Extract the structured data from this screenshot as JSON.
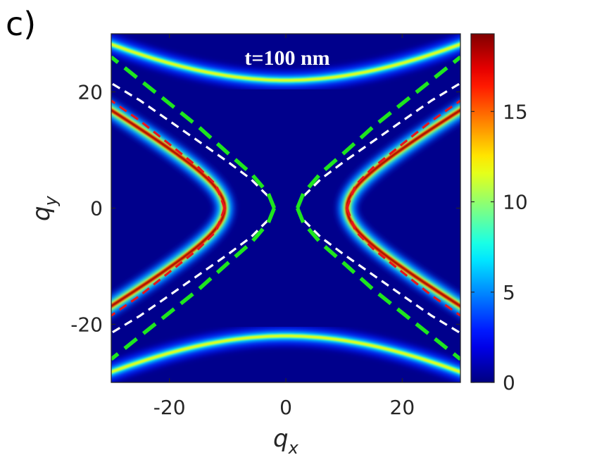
{
  "panel_label": "c)",
  "chart_data": {
    "type": "heatmap",
    "title": "",
    "annotation": "t=100 nm",
    "xlabel": "q",
    "xlabel_subscript": "x",
    "ylabel": "q",
    "ylabel_subscript": "y",
    "xlim": [
      -30,
      30
    ],
    "ylim": [
      -30,
      30
    ],
    "x_ticks": [
      -20,
      0,
      20
    ],
    "y_ticks": [
      -20,
      0,
      20
    ],
    "x_tick_labels": [
      "-20",
      "0",
      "20"
    ],
    "y_tick_labels": [
      "-20",
      "0",
      "20"
    ],
    "colorbar": {
      "colormap": "jet",
      "range": [
        0,
        19.3
      ],
      "ticks": [
        0,
        5,
        10,
        15
      ],
      "tick_labels": [
        "0",
        "5",
        "10",
        "15"
      ]
    },
    "background_value": 0.5,
    "bright_features": [
      {
        "name": "left hyperbola branch",
        "vertex": [
          -10.5,
          0
        ],
        "asymptote_slope": 0.6,
        "peak_value": 19
      },
      {
        "name": "right hyperbola branch",
        "vertex": [
          10.5,
          0
        ],
        "asymptote_slope": 0.6,
        "peak_value": 19
      },
      {
        "name": "top hyperbola branch",
        "vertex": [
          0,
          22
        ],
        "asymptote_slope": 1.7,
        "peak_value": 12
      },
      {
        "name": "bottom hyperbola branch",
        "vertex": [
          0,
          -22
        ],
        "asymptote_slope": 1.7,
        "peak_value": 12
      }
    ],
    "dashed_curves": [
      {
        "color": "#e8141c",
        "vertex_x": 10.5,
        "points": [
          [
            10.5,
            0
          ],
          [
            12,
            4
          ],
          [
            15,
            7
          ],
          [
            20,
            11
          ],
          [
            25,
            15
          ],
          [
            30,
            18.5
          ]
        ]
      },
      {
        "color": "#ffffff",
        "vertex_x": 2,
        "points": [
          [
            2,
            0
          ],
          [
            3,
            2
          ],
          [
            6,
            5
          ],
          [
            10,
            8
          ],
          [
            15,
            11.5
          ],
          [
            20,
            15
          ],
          [
            25,
            18.5
          ],
          [
            30,
            21.5
          ]
        ]
      },
      {
        "color": "#1ee61e",
        "vertex_x": 2,
        "points": [
          [
            2,
            0
          ],
          [
            3,
            2.5
          ],
          [
            6,
            6
          ],
          [
            10,
            9.5
          ],
          [
            15,
            14
          ],
          [
            20,
            18
          ],
          [
            25,
            22
          ],
          [
            30,
            26
          ]
        ]
      }
    ]
  }
}
